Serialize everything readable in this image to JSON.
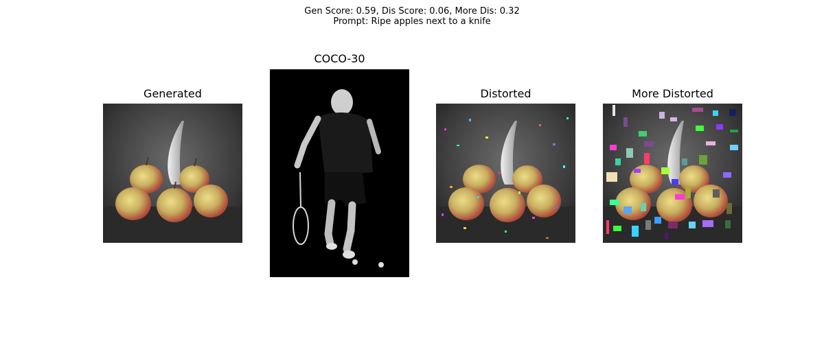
{
  "figure": {
    "title_line1": "Gen Score: 0.59, Dis Score: 0.06, More Dis: 0.32",
    "title_line2": "Prompt: Ripe apples next to a knife"
  },
  "panels": [
    {
      "title": "Generated",
      "image": "apples-and-knife-photo"
    },
    {
      "title": "COCO-30",
      "image": "tennis-player-bw-photo"
    },
    {
      "title": "Distorted",
      "image": "apples-and-knife-with-small-noise-patches"
    },
    {
      "title": "More Distorted",
      "image": "apples-and-knife-with-large-color-patches"
    }
  ]
}
